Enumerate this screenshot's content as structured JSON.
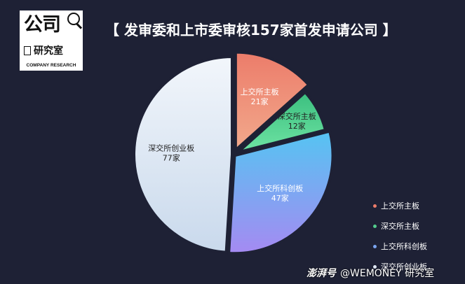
{
  "logo": {
    "line1": "公司",
    "line2": "研究室",
    "line3": "COMPANY RESEARCH"
  },
  "watermark": {
    "brand": "澎湃号",
    "handle": "@WEMONEY 研究室"
  },
  "colors": {
    "background": "#1e2135",
    "separator": "#1e2135"
  },
  "chart_data": {
    "type": "pie",
    "title": "【 发审委和上市委审核157家首发申请公司 】",
    "unit": "家",
    "legend_position": "bottom-right",
    "series": [
      {
        "name": "上交所主板",
        "value": 21,
        "value_label": "21家",
        "color": "#ec7c6a",
        "color_end": "#f2a98c",
        "legend_color": "#ec7c6a"
      },
      {
        "name": "深交所主板",
        "value": 12,
        "value_label": "12家",
        "color": "#3bbf7f",
        "color_end": "#6ee3a3",
        "legend_color": "#53cc8c"
      },
      {
        "name": "上交所科创板",
        "value": 47,
        "value_label": "47家",
        "color": "#55c4f2",
        "color_end": "#a58af2",
        "legend_color": "#7aa4f0"
      },
      {
        "name": "深交所创业板",
        "value": 77,
        "value_label": "77家",
        "color": "#f2f6fb",
        "color_end": "#c9d9ec",
        "legend_color": "#dfe7f2"
      }
    ]
  }
}
